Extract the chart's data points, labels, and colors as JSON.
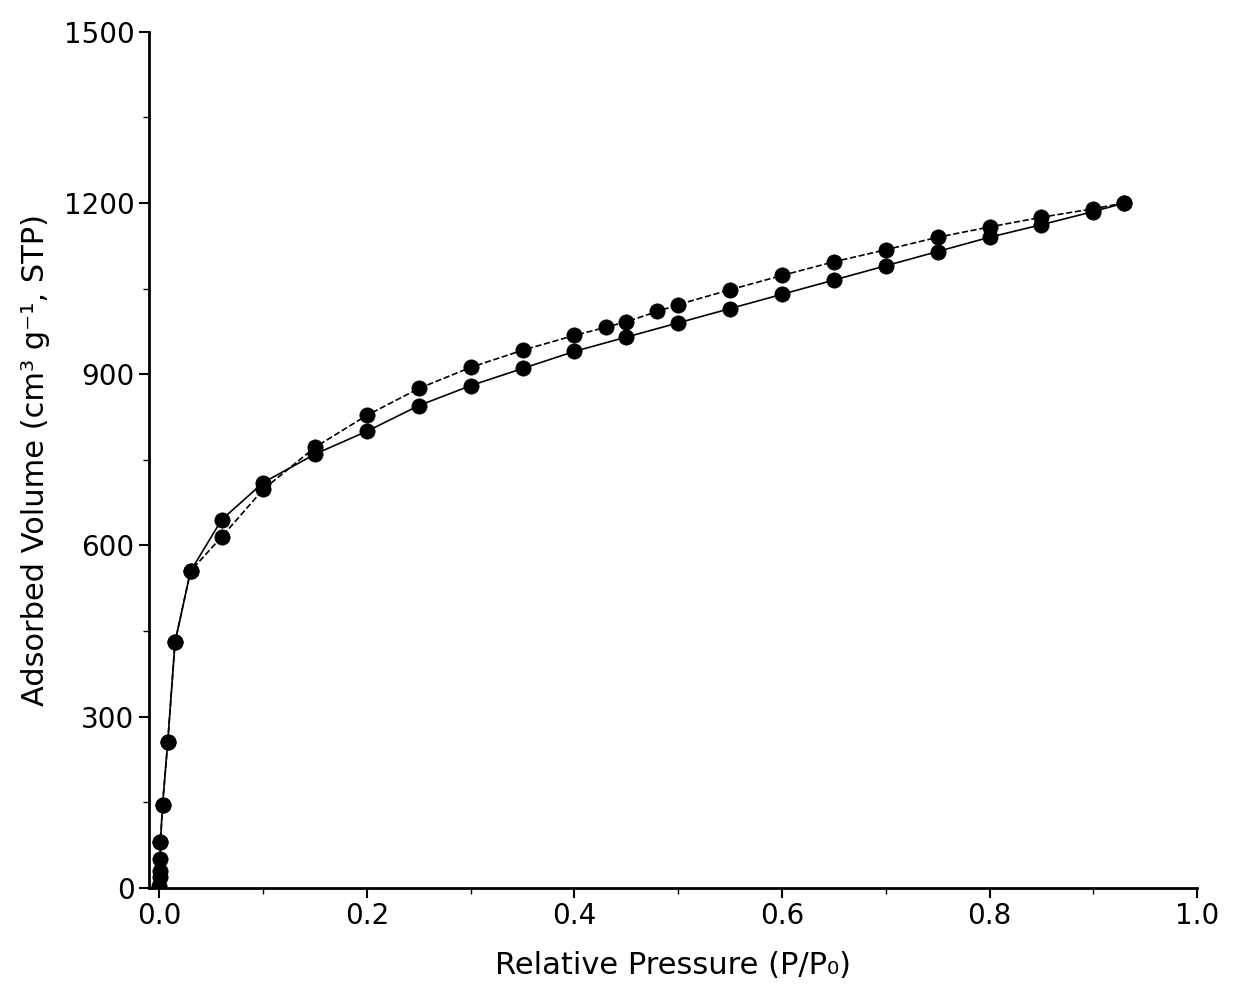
{
  "title": "",
  "xlabel": "Relative Pressure (P/P₀)",
  "ylabel": "Adsorbed Volume (cm³ g⁻¹, STP)",
  "xlim": [
    -0.01,
    1.0
  ],
  "ylim": [
    0,
    1500
  ],
  "xticks": [
    0.0,
    0.2,
    0.4,
    0.6,
    0.8,
    1.0
  ],
  "yticks": [
    0,
    300,
    600,
    900,
    1200,
    1500
  ],
  "line_color": "#000000",
  "marker_color": "#000000",
  "background_color": "#ffffff",
  "adsorption_x": [
    0.0,
    0.0001,
    0.0003,
    0.0006,
    0.001,
    0.003,
    0.008,
    0.015,
    0.03,
    0.06,
    0.1,
    0.15,
    0.2,
    0.25,
    0.3,
    0.35,
    0.4,
    0.45,
    0.5,
    0.55,
    0.6,
    0.65,
    0.7,
    0.75,
    0.8,
    0.85,
    0.9,
    0.93
  ],
  "adsorption_y": [
    3,
    18,
    30,
    50,
    80,
    145,
    255,
    430,
    555,
    645,
    710,
    760,
    800,
    845,
    880,
    910,
    940,
    965,
    990,
    1015,
    1040,
    1065,
    1090,
    1115,
    1140,
    1162,
    1185,
    1200
  ],
  "desorption_x": [
    0.93,
    0.9,
    0.85,
    0.8,
    0.75,
    0.7,
    0.65,
    0.6,
    0.55,
    0.5,
    0.48,
    0.45,
    0.43,
    0.4,
    0.35,
    0.3,
    0.25,
    0.2,
    0.15,
    0.1,
    0.06,
    0.03,
    0.015,
    0.008,
    0.003,
    0.001
  ],
  "desorption_y": [
    1200,
    1190,
    1175,
    1158,
    1140,
    1118,
    1097,
    1073,
    1048,
    1022,
    1010,
    992,
    982,
    968,
    942,
    912,
    875,
    828,
    772,
    698,
    615,
    555,
    430,
    255,
    145,
    80
  ],
  "marker_size": 11,
  "ads_line_style": "-",
  "des_line_style": "--",
  "line_width": 1.2,
  "font_size_label": 22,
  "font_size_tick": 20
}
